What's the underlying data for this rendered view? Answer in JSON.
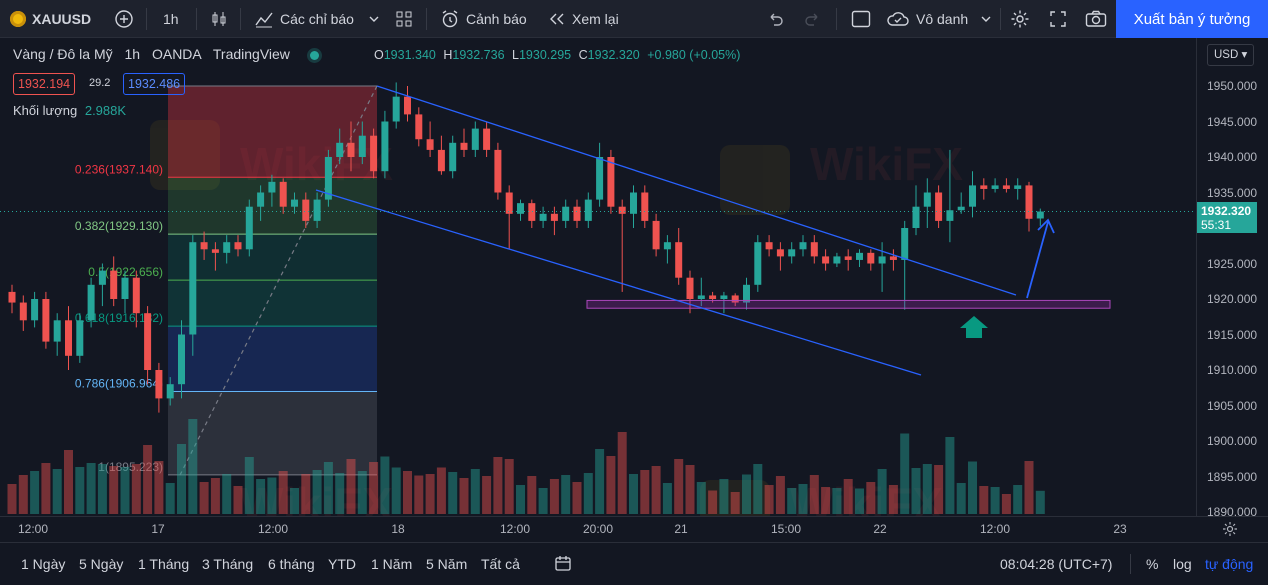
{
  "topbar": {
    "symbol": "XAUUSD",
    "interval": "1h",
    "indicators": "Các chỉ báo",
    "alert": "Cảnh báo",
    "replay": "Xem lại",
    "layout_name": "Vô danh",
    "publish": "Xuất bản ý tưởng"
  },
  "legend": {
    "title": "Vàng / Đô la Mỹ",
    "interval": "1h",
    "broker": "OANDA",
    "platform": "TradingView",
    "o_label": "O",
    "o": "1931.340",
    "h_label": "H",
    "h": "1932.736",
    "l_label": "L",
    "l": "1930.295",
    "c_label": "C",
    "c": "1932.320",
    "change": "+0.980 (+0.05%)",
    "bid": "1932.194",
    "spread": "29.2",
    "ask": "1932.486",
    "volume_label": "Khối lượng",
    "volume": "2.988K"
  },
  "fib": {
    "l0236": "0.236(1937.140)",
    "l0382": "0.382(1929.130)",
    "l05": "0.5(1922.656)",
    "l0618": "0.618(1916.182)",
    "l0786": "0.786(1906.964)",
    "l1": "1(1895.223)"
  },
  "price_axis": {
    "currency": "USD",
    "ticks": [
      "1950.000",
      "1945.000",
      "1940.000",
      "1935.000",
      "1930.000",
      "1925.000",
      "1920.000",
      "1915.000",
      "1910.000",
      "1905.000",
      "1900.000",
      "1895.000",
      "1890.000"
    ],
    "last_price": "1932.320",
    "countdown": "55:31"
  },
  "time_axis": {
    "ticks": [
      "12:00",
      "17",
      "12:00",
      "18",
      "12:00",
      "20:00",
      "21",
      "15:00",
      "22",
      "12:00",
      "23"
    ]
  },
  "bottombar": {
    "ranges": [
      "1 Ngày",
      "5 Ngày",
      "1 Tháng",
      "3 Tháng",
      "6 tháng",
      "YTD",
      "1 Năm",
      "5 Năm",
      "Tất cả"
    ],
    "clock": "08:04:28 (UTC+7)",
    "percent": "%",
    "log": "log",
    "auto": "tự động"
  },
  "colors": {
    "up": "#26a69a",
    "down": "#ef5350",
    "accent": "#2962ff",
    "channel": "#2962ff",
    "zone": "#9c27b0",
    "arrow": "#089981"
  },
  "chart_data": {
    "type": "candlestick",
    "symbol": "XAUUSD",
    "ylim": [
      1890,
      1953
    ],
    "candles": [
      [
        1921.0,
        1922.0,
        1918.0,
        1919.5
      ],
      [
        1919.5,
        1920.5,
        1915.5,
        1917.0
      ],
      [
        1917.0,
        1921.0,
        1916.0,
        1920.0
      ],
      [
        1920.0,
        1921.0,
        1913.0,
        1914.0
      ],
      [
        1914.0,
        1918.0,
        1912.0,
        1917.0
      ],
      [
        1917.0,
        1919.0,
        1910.0,
        1912.0
      ],
      [
        1912.0,
        1918.0,
        1911.0,
        1917.0
      ],
      [
        1917.0,
        1923.0,
        1916.0,
        1922.0
      ],
      [
        1922.0,
        1925.0,
        1919.0,
        1924.0
      ],
      [
        1924.0,
        1926.0,
        1919.0,
        1920.0
      ],
      [
        1920.0,
        1924.0,
        1918.0,
        1923.0
      ],
      [
        1923.0,
        1924.0,
        1916.0,
        1918.0
      ],
      [
        1918.0,
        1919.0,
        1908.0,
        1910.0
      ],
      [
        1910.0,
        1911.0,
        1904.0,
        1906.0
      ],
      [
        1906.0,
        1909.0,
        1905.0,
        1908.0
      ],
      [
        1908.0,
        1917.0,
        1906.0,
        1915.0
      ],
      [
        1915.0,
        1929.0,
        1912.0,
        1928.0
      ],
      [
        1928.0,
        1929.5,
        1925.5,
        1927.0
      ],
      [
        1927.0,
        1928.0,
        1924.0,
        1926.5
      ],
      [
        1926.5,
        1929.0,
        1925.0,
        1928.0
      ],
      [
        1928.0,
        1929.0,
        1926.0,
        1927.0
      ],
      [
        1927.0,
        1934.0,
        1926.0,
        1933.0
      ],
      [
        1933.0,
        1936.0,
        1931.0,
        1935.0
      ],
      [
        1935.0,
        1937.5,
        1933.0,
        1936.5
      ],
      [
        1936.5,
        1937.0,
        1932.0,
        1933.0
      ],
      [
        1933.0,
        1935.0,
        1932.0,
        1934.0
      ],
      [
        1934.0,
        1935.0,
        1930.0,
        1931.0
      ],
      [
        1931.0,
        1935.0,
        1930.0,
        1934.0
      ],
      [
        1934.0,
        1941.0,
        1933.0,
        1940.0
      ],
      [
        1940.0,
        1944.0,
        1939.0,
        1942.0
      ],
      [
        1942.0,
        1945.0,
        1938.0,
        1940.0
      ],
      [
        1940.0,
        1945.0,
        1939.0,
        1943.0
      ],
      [
        1943.0,
        1944.0,
        1937.0,
        1938.0
      ],
      [
        1938.0,
        1946.5,
        1937.0,
        1945.0
      ],
      [
        1945.0,
        1950.5,
        1944.0,
        1948.5
      ],
      [
        1948.5,
        1950.0,
        1945.0,
        1946.0
      ],
      [
        1946.0,
        1947.0,
        1941.5,
        1942.5
      ],
      [
        1942.5,
        1945.0,
        1940.0,
        1941.0
      ],
      [
        1941.0,
        1943.0,
        1937.5,
        1938.0
      ],
      [
        1938.0,
        1943.0,
        1937.0,
        1942.0
      ],
      [
        1942.0,
        1944.0,
        1940.0,
        1941.0
      ],
      [
        1941.0,
        1945.0,
        1940.0,
        1944.0
      ],
      [
        1944.0,
        1945.0,
        1940.0,
        1941.0
      ],
      [
        1941.0,
        1942.0,
        1934.0,
        1935.0
      ],
      [
        1935.0,
        1936.0,
        1927.0,
        1932.0
      ],
      [
        1932.0,
        1934.0,
        1931.0,
        1933.5
      ],
      [
        1933.5,
        1934.0,
        1930.0,
        1931.0
      ],
      [
        1931.0,
        1933.0,
        1930.0,
        1932.0
      ],
      [
        1932.0,
        1933.0,
        1929.0,
        1931.0
      ],
      [
        1931.0,
        1934.0,
        1930.0,
        1933.0
      ],
      [
        1933.0,
        1934.0,
        1930.0,
        1931.0
      ],
      [
        1931.0,
        1935.0,
        1930.0,
        1934.0
      ],
      [
        1934.0,
        1942.0,
        1933.0,
        1940.0
      ],
      [
        1940.0,
        1941.0,
        1932.0,
        1933.0
      ],
      [
        1933.0,
        1934.0,
        1921.0,
        1932.0
      ],
      [
        1932.0,
        1936.0,
        1930.0,
        1935.0
      ],
      [
        1935.0,
        1936.0,
        1930.0,
        1931.0
      ],
      [
        1931.0,
        1932.0,
        1926.0,
        1927.0
      ],
      [
        1927.0,
        1929.0,
        1925.0,
        1928.0
      ],
      [
        1928.0,
        1930.0,
        1922.0,
        1923.0
      ],
      [
        1923.0,
        1924.0,
        1918.0,
        1920.0
      ],
      [
        1920.0,
        1923.0,
        1919.0,
        1920.5
      ],
      [
        1920.5,
        1921.0,
        1919.5,
        1920.0
      ],
      [
        1920.0,
        1921.0,
        1918.0,
        1920.5
      ],
      [
        1920.5,
        1920.8,
        1919.0,
        1919.5
      ],
      [
        1919.5,
        1923.0,
        1918.5,
        1922.0
      ],
      [
        1922.0,
        1929.0,
        1921.0,
        1928.0
      ],
      [
        1928.0,
        1929.0,
        1926.0,
        1927.0
      ],
      [
        1927.0,
        1928.0,
        1924.0,
        1926.0
      ],
      [
        1926.0,
        1928.0,
        1925.0,
        1927.0
      ],
      [
        1927.0,
        1929.0,
        1926.0,
        1928.0
      ],
      [
        1928.0,
        1929.0,
        1925.0,
        1926.0
      ],
      [
        1926.0,
        1927.0,
        1924.0,
        1925.0
      ],
      [
        1925.0,
        1926.5,
        1924.5,
        1926.0
      ],
      [
        1926.0,
        1927.0,
        1924.0,
        1925.5
      ],
      [
        1925.5,
        1927.0,
        1924.5,
        1926.5
      ],
      [
        1926.5,
        1927.0,
        1924.0,
        1925.0
      ],
      [
        1925.0,
        1928.0,
        1921.0,
        1926.0
      ],
      [
        1926.0,
        1927.0,
        1924.0,
        1925.5
      ],
      [
        1925.5,
        1931.0,
        1918.5,
        1930.0
      ],
      [
        1930.0,
        1936.0,
        1929.0,
        1933.0
      ],
      [
        1933.0,
        1937.0,
        1930.0,
        1935.0
      ],
      [
        1935.0,
        1936.0,
        1930.0,
        1931.0
      ],
      [
        1931.0,
        1941.0,
        1928.0,
        1932.5
      ],
      [
        1932.5,
        1935.0,
        1932.0,
        1933.0
      ],
      [
        1933.0,
        1938.0,
        1931.5,
        1936.0
      ],
      [
        1936.0,
        1937.0,
        1934.0,
        1935.5
      ],
      [
        1935.5,
        1937.0,
        1935.0,
        1936.0
      ],
      [
        1936.0,
        1937.0,
        1935.0,
        1935.5
      ],
      [
        1935.5,
        1937.0,
        1934.0,
        1936.0
      ],
      [
        1936.0,
        1936.5,
        1929.5,
        1931.3
      ],
      [
        1931.34,
        1932.736,
        1930.295,
        1932.32
      ]
    ],
    "fibonacci_levels": [
      {
        "ratio": 0,
        "price": 1950.0
      },
      {
        "ratio": 0.236,
        "price": 1937.14
      },
      {
        "ratio": 0.382,
        "price": 1929.13
      },
      {
        "ratio": 0.5,
        "price": 1922.656
      },
      {
        "ratio": 0.618,
        "price": 1916.182
      },
      {
        "ratio": 0.786,
        "price": 1906.964
      },
      {
        "ratio": 1,
        "price": 1895.223
      }
    ],
    "support_zone": [
      1918.7,
      1919.8
    ],
    "last_price": 1932.32
  }
}
